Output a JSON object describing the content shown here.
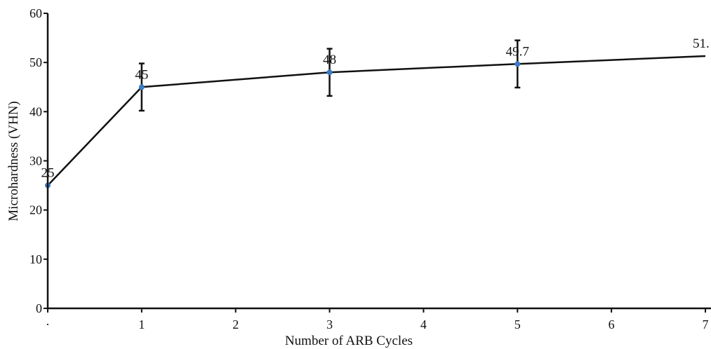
{
  "chart_data": {
    "type": "line",
    "title": "",
    "xlabel": "Number of ARB Cycles",
    "ylabel": "Microhardness (VHN)",
    "xlim": [
      0,
      7
    ],
    "ylim": [
      0,
      60
    ],
    "x_ticks": [
      {
        "value": 0,
        "label": "·"
      },
      {
        "value": 1,
        "label": "1"
      },
      {
        "value": 2,
        "label": "2"
      },
      {
        "value": 3,
        "label": "3"
      },
      {
        "value": 4,
        "label": "4"
      },
      {
        "value": 5,
        "label": "5"
      },
      {
        "value": 6,
        "label": "6"
      },
      {
        "value": 7,
        "label": "7"
      }
    ],
    "y_ticks": [
      {
        "value": 0,
        "label": "0"
      },
      {
        "value": 10,
        "label": "10"
      },
      {
        "value": 20,
        "label": "20"
      },
      {
        "value": 30,
        "label": "30"
      },
      {
        "value": 40,
        "label": "40"
      },
      {
        "value": 50,
        "label": "50"
      },
      {
        "value": 60,
        "label": "60"
      }
    ],
    "grid": false,
    "legend": "none",
    "line_color": "#111111",
    "marker_color": "#3a7cc4",
    "series": [
      {
        "points": [
          {
            "x": 0,
            "y": 25,
            "label": "25",
            "err_low": null,
            "err_high": null
          },
          {
            "x": 1,
            "y": 45,
            "label": "45",
            "err_low": 40.2,
            "err_high": 49.8
          },
          {
            "x": 3,
            "y": 48,
            "label": "48",
            "err_low": 43.2,
            "err_high": 52.8
          },
          {
            "x": 5,
            "y": 49.7,
            "label": "49.7",
            "err_low": 44.9,
            "err_high": 54.5
          },
          {
            "x": 7,
            "y": 51.3,
            "label": "51.",
            "err_low": null,
            "err_high": null
          }
        ]
      }
    ]
  }
}
